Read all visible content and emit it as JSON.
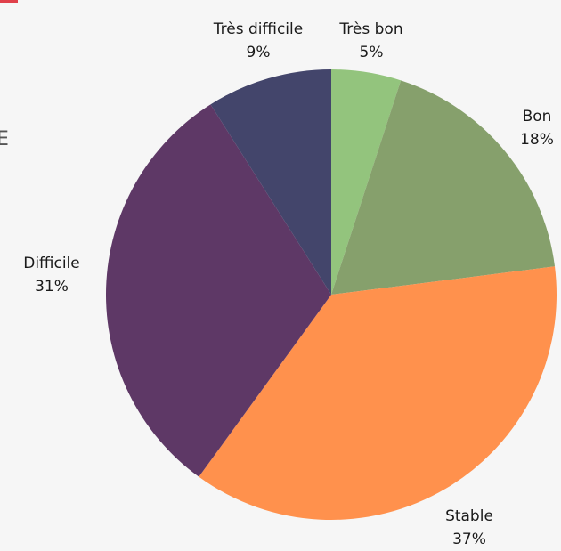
{
  "fragment": "E",
  "chart_data": {
    "type": "pie",
    "categories": [
      "Très bon",
      "Bon",
      "Stable",
      "Difficile",
      "Très difficile"
    ],
    "values": [
      5,
      18,
      37,
      31,
      9
    ],
    "value_labels": [
      "5%",
      "18%",
      "37%",
      "31%",
      "9%"
    ],
    "colors": [
      "#93c47d",
      "#86a06c",
      "#ff914d",
      "#5e3866",
      "#43456b"
    ]
  }
}
